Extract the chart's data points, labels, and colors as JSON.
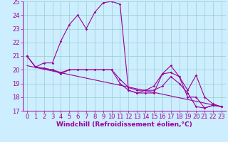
{
  "xlabel": "Windchill (Refroidissement éolien,°C)",
  "bg_color": "#cceeff",
  "line_color": "#990099",
  "xlim": [
    -0.5,
    23.5
  ],
  "ylim": [
    17,
    25
  ],
  "xticks": [
    0,
    1,
    2,
    3,
    4,
    5,
    6,
    7,
    8,
    9,
    10,
    11,
    12,
    13,
    14,
    15,
    16,
    17,
    18,
    19,
    20,
    21,
    22,
    23
  ],
  "yticks": [
    17,
    18,
    19,
    20,
    21,
    22,
    23,
    24,
    25
  ],
  "curve1_x": [
    0,
    1,
    2,
    3,
    4,
    5,
    6,
    7,
    8,
    9,
    10,
    11,
    12,
    13,
    14,
    15,
    16,
    17,
    18,
    19,
    20,
    21,
    22,
    23
  ],
  "curve1_y": [
    21.0,
    20.2,
    20.5,
    20.5,
    22.1,
    23.3,
    24.0,
    23.0,
    24.2,
    24.9,
    25.0,
    24.8,
    18.5,
    18.3,
    18.3,
    18.3,
    19.7,
    19.8,
    19.5,
    18.0,
    18.0,
    17.2,
    17.4,
    17.3
  ],
  "curve2_x": [
    0,
    1,
    2,
    3,
    4,
    5,
    6,
    7,
    8,
    9,
    10,
    11,
    12,
    13,
    14,
    15,
    16,
    17,
    18,
    19,
    20,
    21,
    22,
    23
  ],
  "curve2_y": [
    21.0,
    20.2,
    20.1,
    20.0,
    19.8,
    20.0,
    20.0,
    20.0,
    20.0,
    20.0,
    20.0,
    19.3,
    18.7,
    18.5,
    18.5,
    18.8,
    19.7,
    20.3,
    19.5,
    18.5,
    19.6,
    18.0,
    17.5,
    17.3
  ],
  "curve3_x": [
    0,
    1,
    2,
    3,
    4,
    5,
    6,
    7,
    8,
    9,
    10,
    11,
    12,
    13,
    14,
    15,
    16,
    17,
    18,
    19,
    20,
    21,
    22,
    23
  ],
  "curve3_y": [
    21.0,
    20.2,
    20.1,
    20.0,
    19.7,
    20.0,
    20.0,
    20.0,
    20.0,
    20.0,
    20.0,
    19.0,
    18.5,
    18.3,
    18.5,
    18.5,
    18.8,
    19.5,
    19.0,
    18.3,
    17.3,
    17.2,
    17.4,
    17.3
  ],
  "curve4_x": [
    0,
    23
  ],
  "curve4_y": [
    20.3,
    17.3
  ],
  "marker": "D",
  "markersize": 1.8,
  "linewidth": 0.8,
  "grid_color": "#99cccc",
  "xlabel_fontsize": 6.5,
  "tick_fontsize": 6.0
}
